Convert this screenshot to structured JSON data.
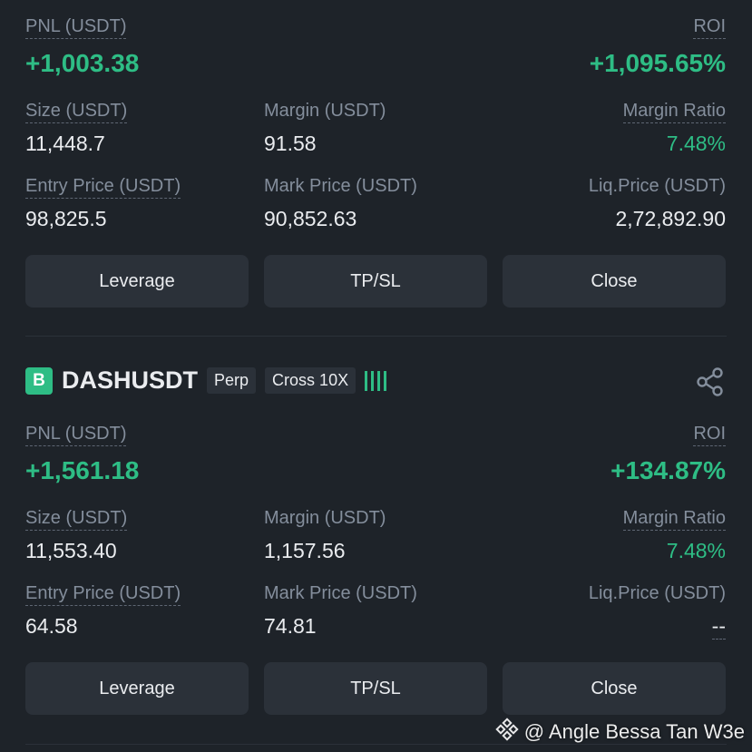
{
  "position1": {
    "pnl_label": "PNL (USDT)",
    "pnl_value": "+1,003.38",
    "roi_label": "ROI",
    "roi_value": "+1,095.65%",
    "size_label": "Size (USDT)",
    "size_value": "11,448.7",
    "margin_label": "Margin (USDT)",
    "margin_value": "91.58",
    "margin_ratio_label": "Margin Ratio",
    "margin_ratio_value": "7.48%",
    "entry_label": "Entry Price (USDT)",
    "entry_value": "98,825.5",
    "mark_label": "Mark Price (USDT)",
    "mark_value": "90,852.63",
    "liq_label": "Liq.Price (USDT)",
    "liq_value": "2,72,892.90",
    "buttons": {
      "leverage": "Leverage",
      "tpsl": "TP/SL",
      "close": "Close"
    }
  },
  "position2": {
    "badge": "B",
    "symbol": "DASHUSDT",
    "tag_type": "Perp",
    "tag_margin": "Cross 10X",
    "pnl_label": "PNL (USDT)",
    "pnl_value": "+1,561.18",
    "roi_label": "ROI",
    "roi_value": "+134.87%",
    "size_label": "Size (USDT)",
    "size_value": "11,553.40",
    "margin_label": "Margin (USDT)",
    "margin_value": "1,157.56",
    "margin_ratio_label": "Margin Ratio",
    "margin_ratio_value": "7.48%",
    "entry_label": "Entry Price (USDT)",
    "entry_value": "64.58",
    "mark_label": "Mark Price (USDT)",
    "mark_value": "74.81",
    "liq_label": "Liq.Price (USDT)",
    "liq_value": "--",
    "buttons": {
      "leverage": "Leverage",
      "tpsl": "TP/SL",
      "close": "Close"
    }
  },
  "watermark": {
    "text": "@ Angle Bessa Tan W3e"
  },
  "colors": {
    "background": "#1e2329",
    "green": "#2ebd85",
    "button": "#2b3139",
    "muted": "#848e9c"
  },
  "icons": {
    "share": "share-icon",
    "watermark_logo": "binance-square-logo"
  }
}
